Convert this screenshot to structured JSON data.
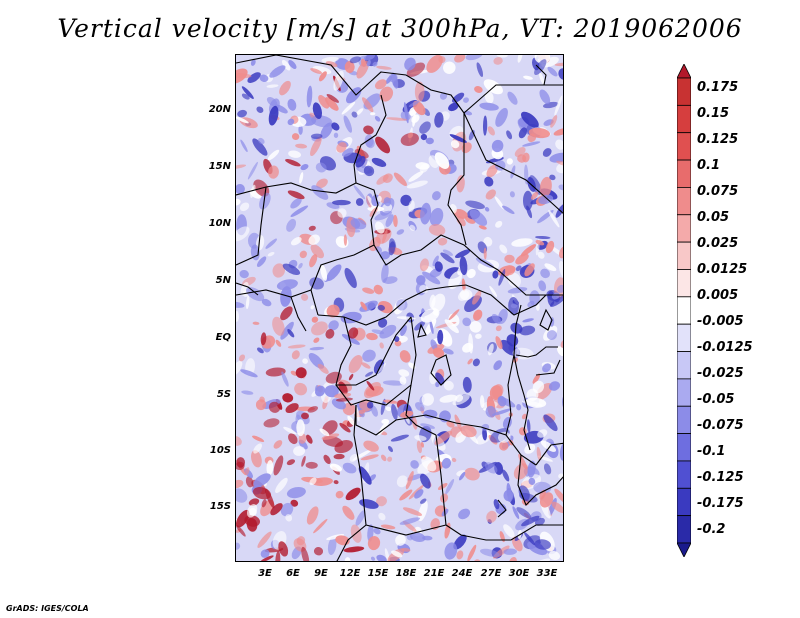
{
  "title": "Vertical velocity [m/s] at 300hPa, VT: 2019062006",
  "credit": "GrADS: IGES/COLA",
  "lat_labels": [
    "20N",
    "15N",
    "10N",
    "5N",
    "EQ",
    "5S",
    "10S",
    "15S"
  ],
  "lon_labels": [
    "3E",
    "6E",
    "9E",
    "12E",
    "15E",
    "18E",
    "21E",
    "24E",
    "27E",
    "30E",
    "33E"
  ],
  "colorbar": {
    "labels": [
      "0.175",
      "0.15",
      "0.125",
      "0.1",
      "0.075",
      "0.05",
      "0.025",
      "0.0125",
      "0.005",
      "-0.005",
      "-0.0125",
      "-0.025",
      "-0.05",
      "-0.075",
      "-0.1",
      "-0.125",
      "-0.175",
      "-0.2"
    ],
    "colors": [
      "#b2182b",
      "#c83232",
      "#d63e3e",
      "#e05050",
      "#e86c6c",
      "#ef8c8c",
      "#f4aaaa",
      "#f8c8c8",
      "#fce6e6",
      "#ffffff",
      "#e2e2fa",
      "#c8c8f6",
      "#aaaaf0",
      "#8c8ce8",
      "#6e6ee0",
      "#5050d2",
      "#3a3ac0",
      "#2a2aa8",
      "#1a1a8c"
    ]
  },
  "map": {
    "field": "vertical velocity",
    "level": "300hPa",
    "valid_time": "2019062006",
    "colors": {
      "background": "#d8d8f6",
      "strong_ascent": "#b2182b",
      "ascent": "#ef8c8c",
      "descent": "#8c8ce8",
      "strong_descent": "#3a3ac0",
      "borders": "#000000"
    }
  }
}
